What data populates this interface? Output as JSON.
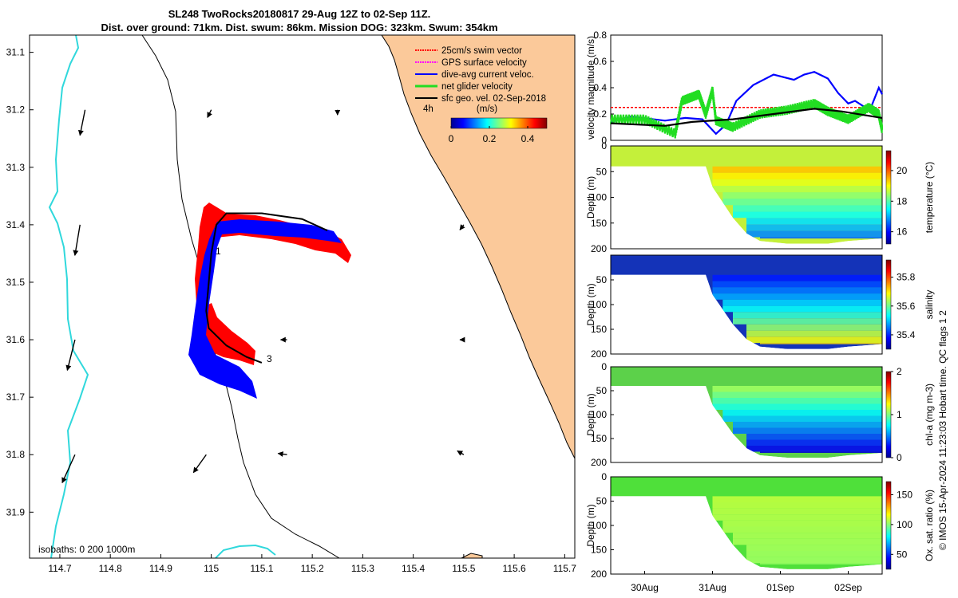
{
  "title": {
    "line1": "SL248 TwoRocks20180817 29-Aug 12Z to 02-Sep 11Z.",
    "line2": "Dist. over ground: 71km. Dist. swum: 86km. Mission DOG: 323km. Swum: 354km"
  },
  "credit": "© IMOS 15-Apr-2024 11:23:03 Hobart time. QC flags 1  2",
  "colors": {
    "land": "#fbc99a",
    "isobath": "#30d8dc",
    "track_red": "#ff0000",
    "track_blue": "#0000ff",
    "green": "#22dd22",
    "black": "#000000",
    "magenta": "#ff00ff"
  },
  "chart_data": [
    {
      "type": "map",
      "name": "track-map",
      "xticks": [
        "114.7",
        "114.8",
        "114.9",
        "115",
        "115.1",
        "115.2",
        "115.3",
        "115.4",
        "115.5",
        "115.6",
        "115.7"
      ],
      "yticks": [
        "31.1",
        "31.2",
        "31.3",
        "31.4",
        "31.5",
        "31.6",
        "31.7",
        "31.8",
        "31.9"
      ],
      "xlim": [
        114.64,
        115.72
      ],
      "ylim": [
        31.98,
        31.07
      ],
      "legend": [
        "25cm/s swim vector",
        "GPS surface velocity",
        "dive-avg current veloc.",
        "net glider velocity",
        "sfc geo. vel. 02-Sep-2018"
      ],
      "legend_tag": "4h",
      "colorbar": {
        "label": "(m/s)",
        "ticks": [
          "0",
          "0.2",
          "0.4"
        ],
        "range": [
          0,
          0.5
        ],
        "colormap": "jet"
      },
      "isobath_note": "isobaths: 0   200  1000m",
      "waypoints": [
        {
          "label": "1",
          "lon": 115.01,
          "lat": 31.43
        },
        {
          "label": "3",
          "lon": 115.09,
          "lat": 31.62
        }
      ],
      "track": [
        [
          115.1,
          31.64
        ],
        [
          115.07,
          31.63
        ],
        [
          115.03,
          31.61
        ],
        [
          114.995,
          31.58
        ],
        [
          114.99,
          31.55
        ],
        [
          114.995,
          31.5
        ],
        [
          115.0,
          31.45
        ],
        [
          115.01,
          31.4
        ],
        [
          115.03,
          31.38
        ],
        [
          115.1,
          31.38
        ],
        [
          115.18,
          31.39
        ],
        [
          115.23,
          31.41
        ]
      ],
      "surface_vectors": [
        {
          "lon": 114.75,
          "lat": 31.2,
          "u": -0.04,
          "v": -0.2
        },
        {
          "lon": 115.0,
          "lat": 31.2,
          "u": -0.03,
          "v": -0.06
        },
        {
          "lon": 115.25,
          "lat": 31.2,
          "u": 0.0,
          "v": -0.04
        },
        {
          "lon": 114.74,
          "lat": 31.4,
          "u": -0.04,
          "v": -0.24
        },
        {
          "lon": 115.5,
          "lat": 31.4,
          "u": -0.03,
          "v": -0.04
        },
        {
          "lon": 114.73,
          "lat": 31.6,
          "u": -0.06,
          "v": -0.24
        },
        {
          "lon": 115.15,
          "lat": 31.6,
          "u": -0.05,
          "v": 0.0
        },
        {
          "lon": 115.5,
          "lat": 31.6,
          "u": -0.03,
          "v": 0.0
        },
        {
          "lon": 114.73,
          "lat": 31.8,
          "u": -0.1,
          "v": -0.22
        },
        {
          "lon": 114.99,
          "lat": 31.8,
          "u": -0.1,
          "v": -0.14
        },
        {
          "lon": 115.15,
          "lat": 31.8,
          "u": -0.07,
          "v": 0.01
        },
        {
          "lon": 115.5,
          "lat": 31.8,
          "u": -0.05,
          "v": 0.03
        }
      ]
    },
    {
      "type": "line",
      "name": "velocity-magnitude",
      "ylabel": "velocity magnitude (m/s)",
      "yticks": [
        "0",
        "0.2",
        "0.4",
        "0.6",
        "0.8"
      ],
      "ylim": [
        0,
        0.8
      ],
      "xlim": [
        0,
        4
      ],
      "series": [
        {
          "name": "25cm/s swim vector",
          "color": "#ff0000",
          "dashed": true,
          "x": [
            0,
            4
          ],
          "y": [
            0.25,
            0.25
          ]
        },
        {
          "name": "dive-avg current veloc.",
          "color": "#0000ff",
          "x": [
            0,
            0.3,
            0.8,
            1.1,
            1.35,
            1.55,
            1.7,
            1.85,
            2.1,
            2.4,
            2.7,
            2.85,
            3.0,
            3.2,
            3.35,
            3.5,
            3.6,
            3.75,
            3.85,
            3.95,
            4.0
          ],
          "y": [
            0.14,
            0.18,
            0.15,
            0.17,
            0.16,
            0.05,
            0.12,
            0.3,
            0.42,
            0.5,
            0.46,
            0.5,
            0.52,
            0.47,
            0.36,
            0.28,
            0.3,
            0.25,
            0.27,
            0.4,
            0.35
          ]
        },
        {
          "name": "net glider velocity",
          "color": "#22dd22",
          "x": [
            0,
            0.5,
            0.95,
            1.05,
            1.3,
            1.4,
            1.5,
            1.55,
            1.8,
            2.2,
            2.6,
            3.0,
            3.2,
            3.5,
            3.8,
            3.95,
            4.0
          ],
          "y": [
            0.16,
            0.16,
            0.05,
            0.3,
            0.35,
            0.2,
            0.38,
            0.15,
            0.1,
            0.2,
            0.23,
            0.28,
            0.22,
            0.16,
            0.25,
            0.2,
            0.08
          ]
        },
        {
          "name": "sfc geo. vel.",
          "color": "#000000",
          "x": [
            0,
            0.8,
            1.2,
            1.8,
            2.4,
            3.0,
            3.4,
            4.0
          ],
          "y": [
            0.13,
            0.11,
            0.14,
            0.16,
            0.2,
            0.24,
            0.22,
            0.17
          ]
        }
      ]
    },
    {
      "type": "heatmap",
      "name": "temperature-section",
      "ylabel": "Depth (m)",
      "yticks": [
        "0",
        "50",
        "100",
        "150",
        "200"
      ],
      "cbar_label": "temperature (°C)",
      "cbar_ticks": [
        "16",
        "18",
        "20"
      ],
      "cbar_range": [
        15.2,
        21.3
      ],
      "top_value": 19.5,
      "deep_value": 16.4,
      "surface_color": "#c4f03a"
    },
    {
      "type": "heatmap",
      "name": "salinity-section",
      "ylabel": "Depth (m)",
      "yticks": [
        "50",
        "100",
        "150",
        "200"
      ],
      "cbar_label": "salinity",
      "cbar_ticks": [
        "35.4",
        "35.6",
        "35.8"
      ],
      "cbar_range": [
        35.3,
        35.92
      ],
      "top_value": 35.38,
      "deep_value": 35.72,
      "surface_color": "#1433b8"
    },
    {
      "type": "heatmap",
      "name": "chl-section",
      "ylabel": "Depth (m)",
      "yticks": [
        "0",
        "50",
        "100",
        "150",
        "200"
      ],
      "cbar_label": "chl-a (mg m-3)",
      "cbar_ticks": [
        "0",
        "1",
        "2"
      ],
      "cbar_range": [
        0,
        2
      ],
      "top_value": 1.1,
      "deep_value": 0.1,
      "surface_color": "#5cd14a"
    },
    {
      "type": "heatmap",
      "name": "oxygen-section",
      "ylabel": "Depth (m)",
      "yticks": [
        "0",
        "50",
        "100",
        "150",
        "200"
      ],
      "cbar_label": "Ox. sat. ratio (%)",
      "cbar_ticks": [
        "50",
        "100",
        "150"
      ],
      "cbar_range": [
        25,
        172
      ],
      "top_value": 108,
      "deep_value": 102,
      "surface_color": "#4fe03a"
    },
    {
      "type": "time-axis",
      "name": "time-axis",
      "ticks": [
        "30Aug",
        "31Aug",
        "01Sep",
        "02Sep"
      ],
      "xlim_days": [
        0,
        4
      ]
    }
  ]
}
